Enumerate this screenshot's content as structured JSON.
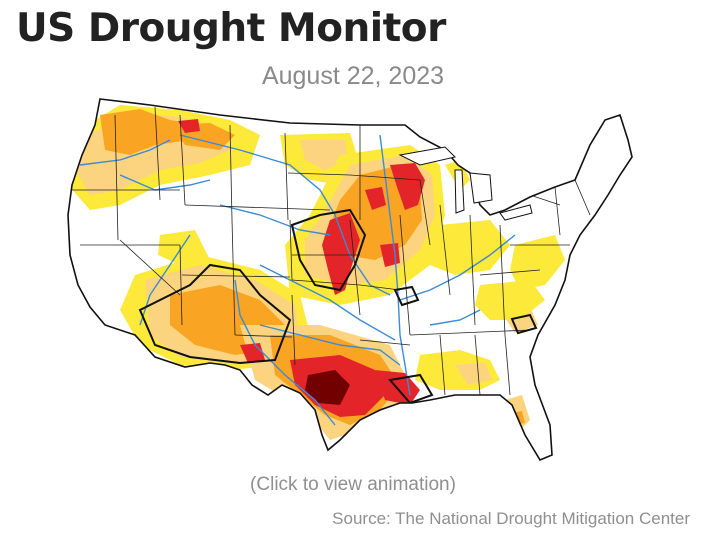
{
  "title": "US Drought Monitor",
  "date": "August 22, 2023",
  "click_note": "(Click to view animation)",
  "source": "Source: The National Drought Mitigation Center",
  "colors": {
    "D0_abnormally_dry": "#fce93a",
    "D1_moderate": "#fcd37f",
    "D2_severe": "#f9a423",
    "D3_extreme": "#e3252a",
    "D4_exceptional": "#730000",
    "water": "#3b8bd6",
    "outline": "#111111"
  }
}
